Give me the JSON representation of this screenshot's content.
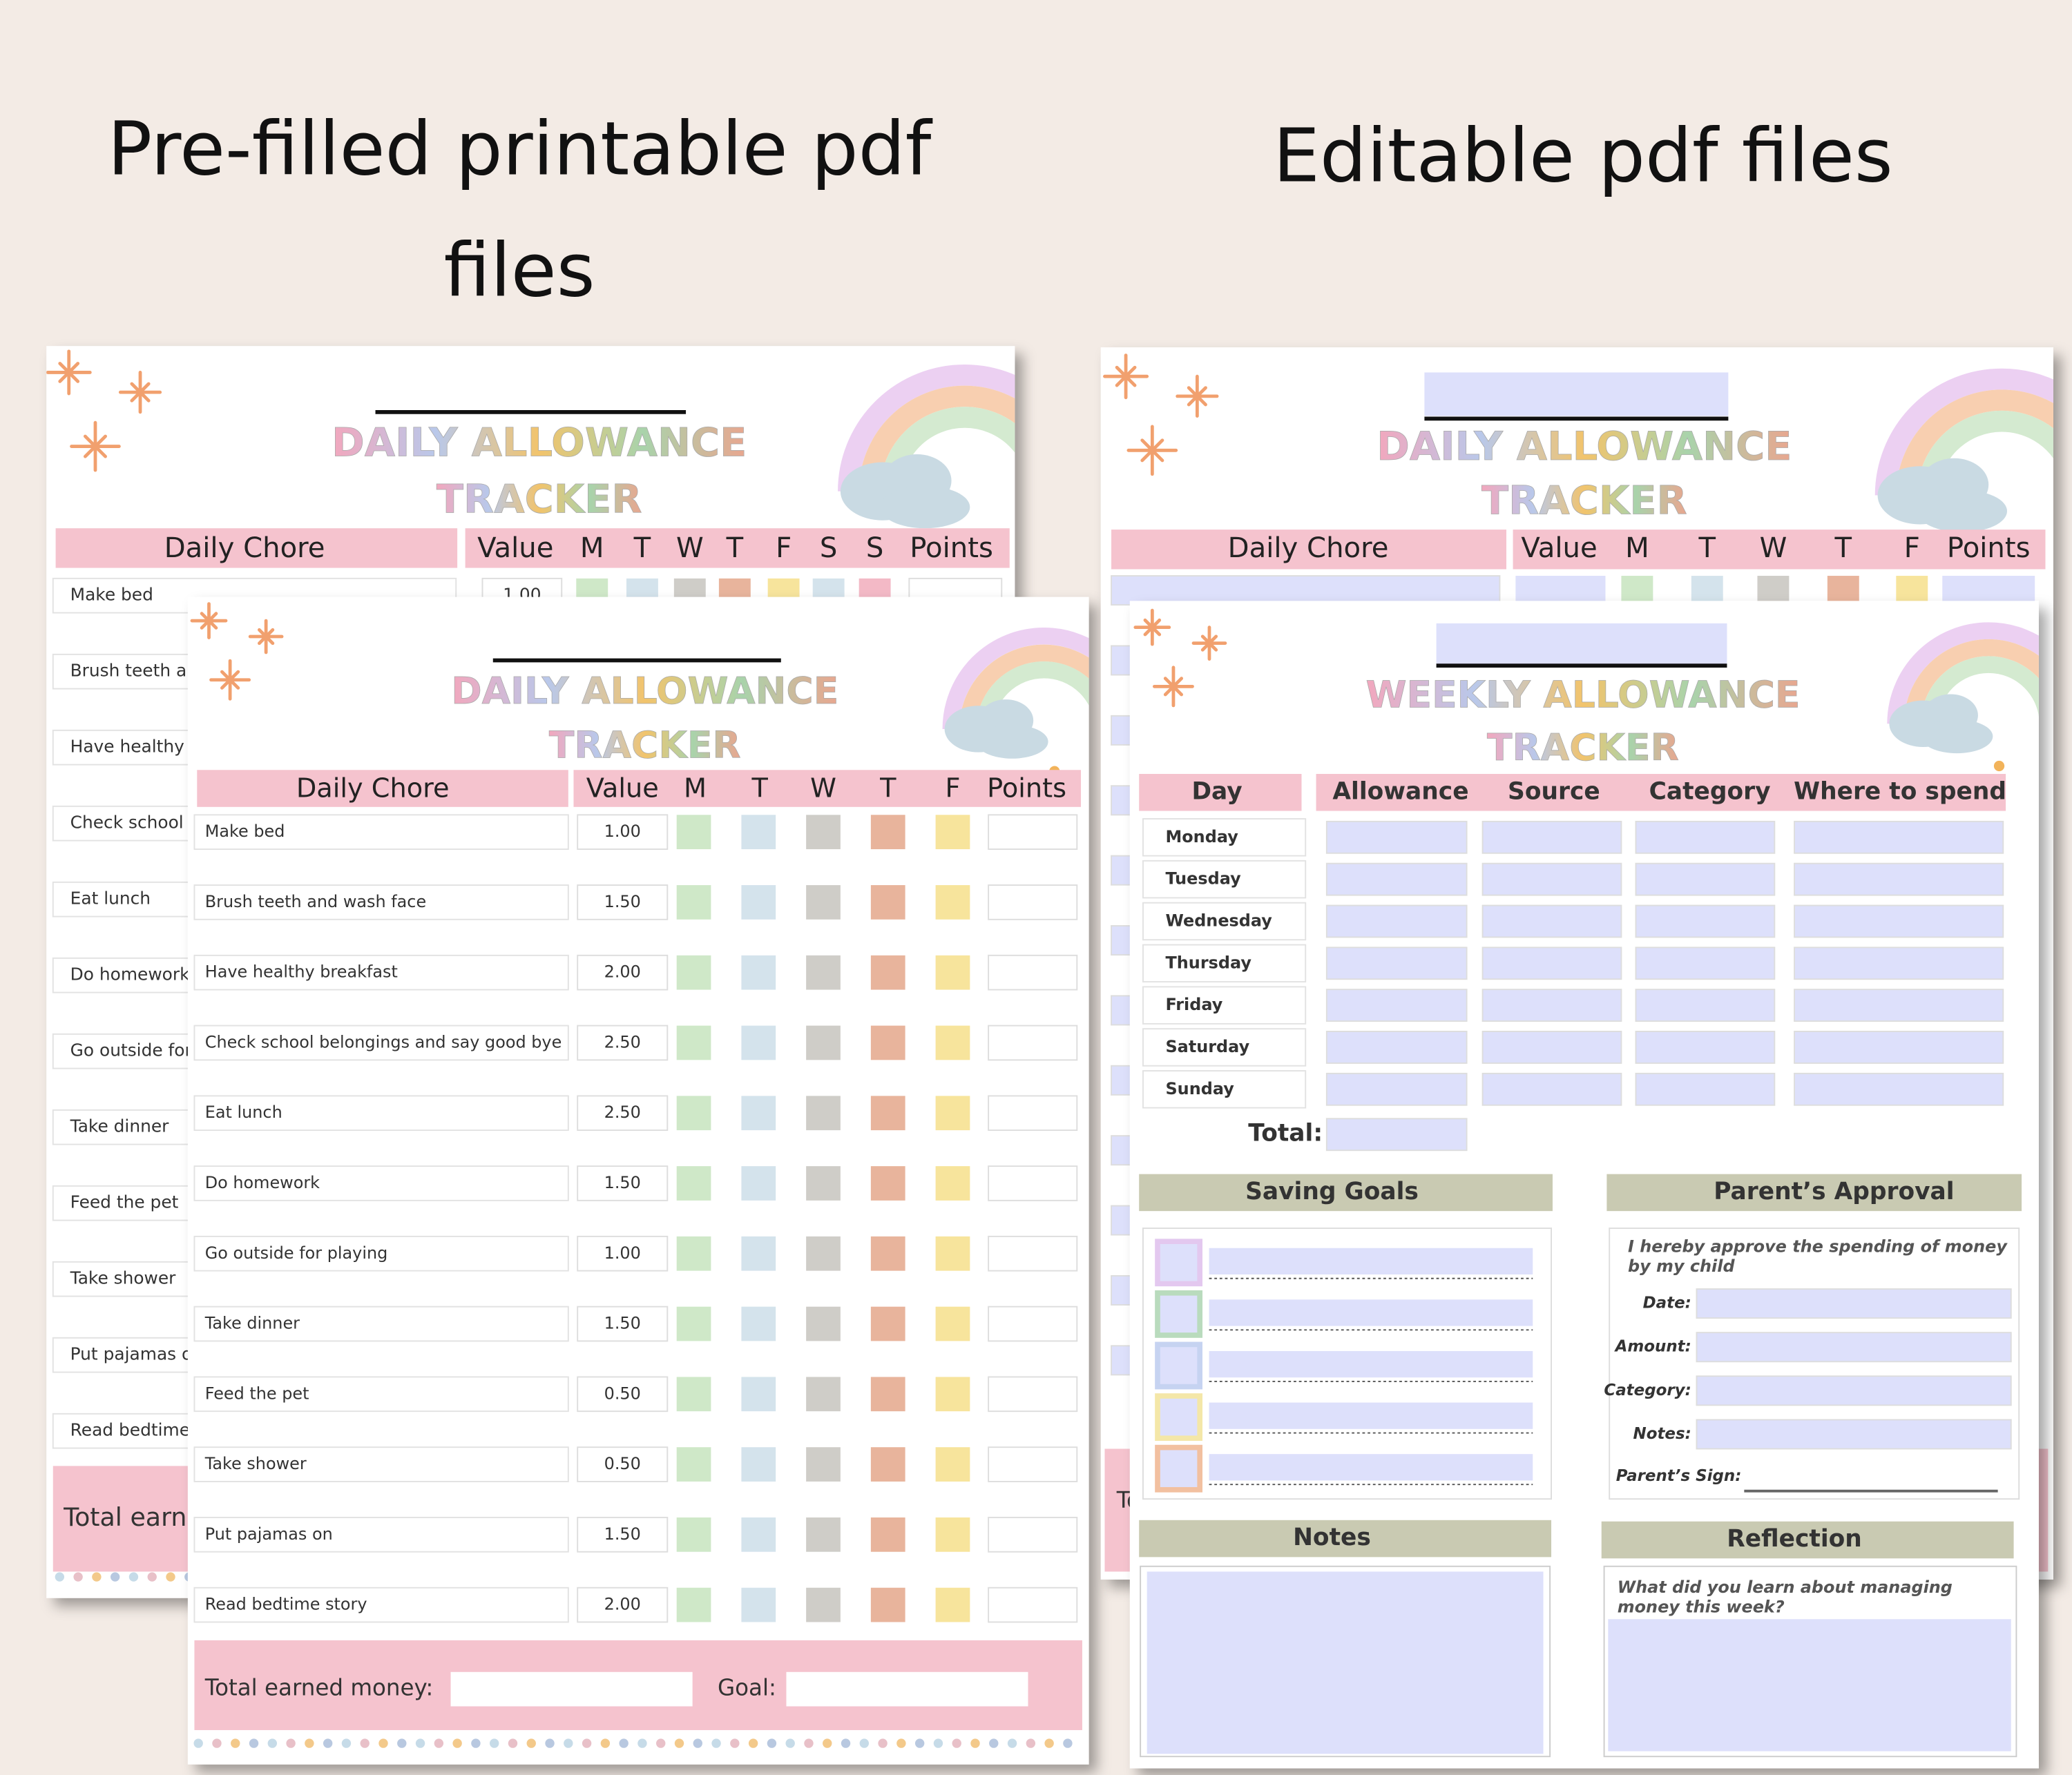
{
  "headings": [
    "Pre-filled printable pdf files",
    "Editable pdf files"
  ],
  "daily_tracker": {
    "title": "DAILY ALLOWANCE",
    "subtitle": "TRACKER",
    "columns": [
      "Daily Chore",
      "Value",
      "M",
      "T",
      "W",
      "T",
      "F",
      "Points"
    ],
    "back_columns": [
      "Daily Chore",
      "Value",
      "M",
      "T",
      "W",
      "T",
      "F",
      "S",
      "S",
      "Points"
    ],
    "rows": [
      {
        "chore": "Make bed",
        "value": "1.00"
      },
      {
        "chore": "Brush teeth and wash face",
        "value": "1.50"
      },
      {
        "chore": "Have healthy breakfast",
        "value": "2.00"
      },
      {
        "chore": "Check school belongings and say good bye",
        "value": "2.50"
      },
      {
        "chore": "Eat lunch",
        "value": "2.50"
      },
      {
        "chore": "Do homework",
        "value": "1.50"
      },
      {
        "chore": "Go outside for playing",
        "value": "1.00"
      },
      {
        "chore": "Take dinner",
        "value": "1.50"
      },
      {
        "chore": "Feed the pet",
        "value": "0.50"
      },
      {
        "chore": "Take shower",
        "value": "0.50"
      },
      {
        "chore": "Put pajamas on",
        "value": "1.50"
      },
      {
        "chore": "Read bedtime story",
        "value": "2.00"
      }
    ],
    "total_label": "Total earned money:",
    "goal_label": "Goal:"
  },
  "weekly_tracker": {
    "title": "WEEKLY ALLOWANCE",
    "subtitle": "TRACKER",
    "columns": [
      "Day",
      "Allowance",
      "Source",
      "Category",
      "Where to spend"
    ],
    "days": [
      "Monday",
      "Tuesday",
      "Wednesday",
      "Thursday",
      "Friday",
      "Saturday",
      "Sunday"
    ],
    "total_label": "Total:",
    "saving_goals": "Saving Goals",
    "parents_approval": "Parent’s Approval",
    "approval_text": "I hereby approve the spending of money by my child",
    "approval_fields": [
      "Date:",
      "Amount:",
      "Category:",
      "Notes:"
    ],
    "sign_label": "Parent’s Sign:",
    "notes": "Notes",
    "reflection": "Reflection",
    "reflection_prompt": "What did you learn about managing money this week?"
  }
}
